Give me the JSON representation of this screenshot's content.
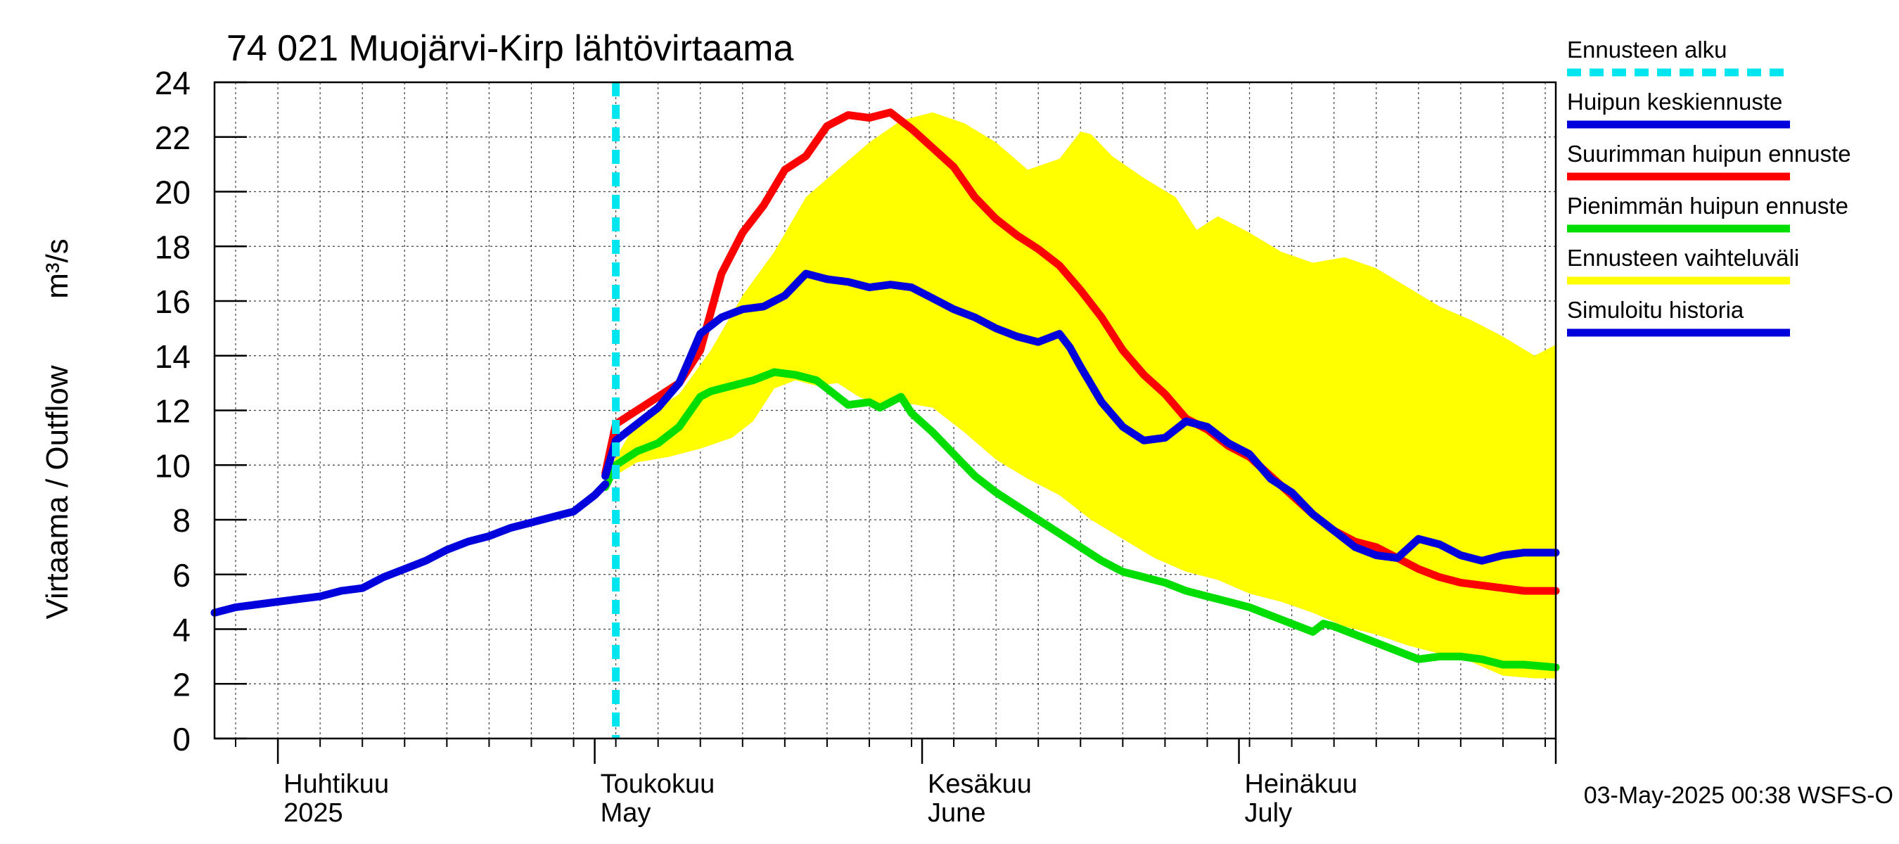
{
  "chart_data": {
    "type": "line",
    "title": "74 021 Muojärvi-Kirp lähtövirtaama",
    "ylabel": "Virtaama / Outflow",
    "yunit": "m³/s",
    "ylim": [
      0,
      24
    ],
    "yticks": [
      0,
      2,
      4,
      6,
      8,
      10,
      12,
      14,
      16,
      18,
      20,
      22,
      24
    ],
    "xlim": [
      "2025-03-26",
      "2025-07-31"
    ],
    "month_labels": [
      {
        "date": "2025-04-01",
        "fi": "Huhtikuu",
        "en": "2025"
      },
      {
        "date": "2025-05-01",
        "fi": "Toukokuu",
        "en": "May"
      },
      {
        "date": "2025-06-01",
        "fi": "Kesäkuu",
        "en": "June"
      },
      {
        "date": "2025-07-01",
        "fi": "Heinäkuu",
        "en": "July"
      }
    ],
    "grid": true,
    "legend_position": "right",
    "forecast_start": "2025-05-03",
    "footer": "03-May-2025 00:38 WSFS-O",
    "legend": [
      {
        "key": "forecast_start",
        "label": "Ennusteen alku",
        "color": "#00e5ee",
        "style": "dashed"
      },
      {
        "key": "mean",
        "label": "Huipun keskiennuste",
        "color": "#0000dd"
      },
      {
        "key": "max",
        "label": "Suurimman huipun ennuste",
        "color": "#ff0000"
      },
      {
        "key": "min",
        "label": "Pienimmän huipun ennuste",
        "color": "#00dd00"
      },
      {
        "key": "range",
        "label": "Ennusteen vaihteluväli",
        "color": "#ffff00"
      },
      {
        "key": "history",
        "label": "Simuloitu historia",
        "color": "#0000dd"
      }
    ],
    "series": {
      "range_upper": {
        "x": [
          "2025-05-02",
          "2025-05-05",
          "2025-05-09",
          "2025-05-12",
          "2025-05-15",
          "2025-05-18",
          "2025-05-21",
          "2025-05-24",
          "2025-05-27",
          "2025-05-30",
          "2025-06-02",
          "2025-06-05",
          "2025-06-08",
          "2025-06-11",
          "2025-06-14",
          "2025-06-16",
          "2025-06-17",
          "2025-06-19",
          "2025-06-22",
          "2025-06-25",
          "2025-06-27",
          "2025-06-29",
          "2025-07-02",
          "2025-07-05",
          "2025-07-08",
          "2025-07-11",
          "2025-07-14",
          "2025-07-17",
          "2025-07-20",
          "2025-07-23",
          "2025-07-26",
          "2025-07-29",
          "2025-07-31"
        ],
        "y": [
          9.6,
          11.6,
          12.6,
          14.2,
          16.2,
          17.8,
          19.8,
          20.8,
          21.8,
          22.6,
          22.9,
          22.5,
          21.8,
          20.8,
          21.2,
          22.2,
          22.1,
          21.3,
          20.5,
          19.8,
          18.6,
          19.1,
          18.5,
          17.8,
          17.4,
          17.6,
          17.2,
          16.5,
          15.8,
          15.3,
          14.7,
          14.0,
          14.4
        ]
      },
      "range_lower": {
        "x": [
          "2025-05-02",
          "2025-05-05",
          "2025-05-08",
          "2025-05-11",
          "2025-05-14",
          "2025-05-16",
          "2025-05-18",
          "2025-05-20",
          "2025-05-22",
          "2025-05-24",
          "2025-05-26",
          "2025-05-28",
          "2025-05-30",
          "2025-06-02",
          "2025-06-05",
          "2025-06-08",
          "2025-06-11",
          "2025-06-14",
          "2025-06-17",
          "2025-06-20",
          "2025-06-23",
          "2025-06-26",
          "2025-06-29",
          "2025-07-02",
          "2025-07-05",
          "2025-07-08",
          "2025-07-11",
          "2025-07-14",
          "2025-07-17",
          "2025-07-20",
          "2025-07-23",
          "2025-07-26",
          "2025-07-29",
          "2025-07-31"
        ],
        "y": [
          9.4,
          10.1,
          10.3,
          10.6,
          11.0,
          11.6,
          12.8,
          13.1,
          12.9,
          13.0,
          12.5,
          12.2,
          12.3,
          12.1,
          11.2,
          10.2,
          9.5,
          8.9,
          8.0,
          7.3,
          6.6,
          6.1,
          5.8,
          5.3,
          5.0,
          4.6,
          4.1,
          3.8,
          3.4,
          3.1,
          2.8,
          2.3,
          2.2,
          2.2
        ]
      },
      "history": {
        "x": [
          "2025-03-26",
          "2025-03-28",
          "2025-03-30",
          "2025-04-01",
          "2025-04-03",
          "2025-04-05",
          "2025-04-07",
          "2025-04-09",
          "2025-04-11",
          "2025-04-13",
          "2025-04-15",
          "2025-04-17",
          "2025-04-19",
          "2025-04-21",
          "2025-04-23",
          "2025-04-25",
          "2025-04-27",
          "2025-04-29",
          "2025-05-01",
          "2025-05-02"
        ],
        "y": [
          4.6,
          4.8,
          4.9,
          5.0,
          5.1,
          5.2,
          5.4,
          5.5,
          5.9,
          6.2,
          6.5,
          6.9,
          7.2,
          7.4,
          7.7,
          7.9,
          8.1,
          8.3,
          8.9,
          9.3
        ]
      },
      "mean": {
        "x": [
          "2025-05-02",
          "2025-05-03",
          "2025-05-05",
          "2025-05-07",
          "2025-05-09",
          "2025-05-11",
          "2025-05-13",
          "2025-05-15",
          "2025-05-17",
          "2025-05-19",
          "2025-05-21",
          "2025-05-23",
          "2025-05-25",
          "2025-05-26",
          "2025-05-27",
          "2025-05-29",
          "2025-05-31",
          "2025-06-02",
          "2025-06-04",
          "2025-06-06",
          "2025-06-08",
          "2025-06-10",
          "2025-06-12",
          "2025-06-14",
          "2025-06-15",
          "2025-06-16",
          "2025-06-18",
          "2025-06-20",
          "2025-06-22",
          "2025-06-24",
          "2025-06-26",
          "2025-06-28",
          "2025-06-30",
          "2025-07-02",
          "2025-07-04",
          "2025-07-06",
          "2025-07-08",
          "2025-07-10",
          "2025-07-12",
          "2025-07-14",
          "2025-07-16",
          "2025-07-18",
          "2025-07-20",
          "2025-07-22",
          "2025-07-24",
          "2025-07-26",
          "2025-07-28",
          "2025-07-30",
          "2025-07-31"
        ],
        "y": [
          9.6,
          10.9,
          11.5,
          12.1,
          13.0,
          14.8,
          15.4,
          15.7,
          15.8,
          16.2,
          17.0,
          16.8,
          16.7,
          16.6,
          16.5,
          16.6,
          16.5,
          16.1,
          15.7,
          15.4,
          15.0,
          14.7,
          14.5,
          14.8,
          14.3,
          13.6,
          12.3,
          11.4,
          10.9,
          11.0,
          11.6,
          11.4,
          10.8,
          10.4,
          9.5,
          9.0,
          8.2,
          7.6,
          7.0,
          6.7,
          6.6,
          7.3,
          7.1,
          6.7,
          6.5,
          6.7,
          6.8,
          6.8,
          6.8
        ]
      },
      "max": {
        "x": [
          "2025-05-02",
          "2025-05-03",
          "2025-05-05",
          "2025-05-07",
          "2025-05-09",
          "2025-05-11",
          "2025-05-13",
          "2025-05-15",
          "2025-05-17",
          "2025-05-19",
          "2025-05-21",
          "2025-05-23",
          "2025-05-25",
          "2025-05-27",
          "2025-05-29",
          "2025-05-31",
          "2025-06-02",
          "2025-06-04",
          "2025-06-06",
          "2025-06-08",
          "2025-06-10",
          "2025-06-12",
          "2025-06-14",
          "2025-06-16",
          "2025-06-18",
          "2025-06-20",
          "2025-06-22",
          "2025-06-24",
          "2025-06-26",
          "2025-06-28",
          "2025-06-30",
          "2025-07-02",
          "2025-07-04",
          "2025-07-06",
          "2025-07-08",
          "2025-07-10",
          "2025-07-12",
          "2025-07-14",
          "2025-07-16",
          "2025-07-18",
          "2025-07-20",
          "2025-07-22",
          "2025-07-24",
          "2025-07-26",
          "2025-07-28",
          "2025-07-30",
          "2025-07-31"
        ],
        "y": [
          9.7,
          11.5,
          12.0,
          12.5,
          13.0,
          14.2,
          17.0,
          18.5,
          19.5,
          20.8,
          21.3,
          22.4,
          22.8,
          22.7,
          22.9,
          22.3,
          21.6,
          20.9,
          19.8,
          19.0,
          18.4,
          17.9,
          17.3,
          16.4,
          15.4,
          14.2,
          13.3,
          12.6,
          11.7,
          11.3,
          10.7,
          10.3,
          9.6,
          8.9,
          8.2,
          7.6,
          7.2,
          7.0,
          6.6,
          6.2,
          5.9,
          5.7,
          5.6,
          5.5,
          5.4,
          5.4,
          5.4
        ]
      },
      "min": {
        "x": [
          "2025-05-02",
          "2025-05-03",
          "2025-05-05",
          "2025-05-07",
          "2025-05-09",
          "2025-05-11",
          "2025-05-12",
          "2025-05-14",
          "2025-05-16",
          "2025-05-18",
          "2025-05-20",
          "2025-05-22",
          "2025-05-24",
          "2025-05-25",
          "2025-05-27",
          "2025-05-28",
          "2025-05-30",
          "2025-05-31",
          "2025-06-02",
          "2025-06-04",
          "2025-06-06",
          "2025-06-08",
          "2025-06-10",
          "2025-06-12",
          "2025-06-14",
          "2025-06-16",
          "2025-06-18",
          "2025-06-20",
          "2025-06-22",
          "2025-06-24",
          "2025-06-26",
          "2025-06-28",
          "2025-06-30",
          "2025-07-02",
          "2025-07-04",
          "2025-07-06",
          "2025-07-08",
          "2025-07-09",
          "2025-07-10",
          "2025-07-12",
          "2025-07-14",
          "2025-07-16",
          "2025-07-18",
          "2025-07-20",
          "2025-07-22",
          "2025-07-24",
          "2025-07-26",
          "2025-07-28",
          "2025-07-31"
        ],
        "y": [
          9.2,
          10.0,
          10.5,
          10.8,
          11.4,
          12.5,
          12.7,
          12.9,
          13.1,
          13.4,
          13.3,
          13.1,
          12.5,
          12.2,
          12.3,
          12.1,
          12.5,
          11.9,
          11.2,
          10.4,
          9.6,
          9.0,
          8.5,
          8.0,
          7.5,
          7.0,
          6.5,
          6.1,
          5.9,
          5.7,
          5.4,
          5.2,
          5.0,
          4.8,
          4.5,
          4.2,
          3.9,
          4.2,
          4.1,
          3.8,
          3.5,
          3.2,
          2.9,
          3.0,
          3.0,
          2.9,
          2.7,
          2.7,
          2.6
        ]
      }
    }
  }
}
